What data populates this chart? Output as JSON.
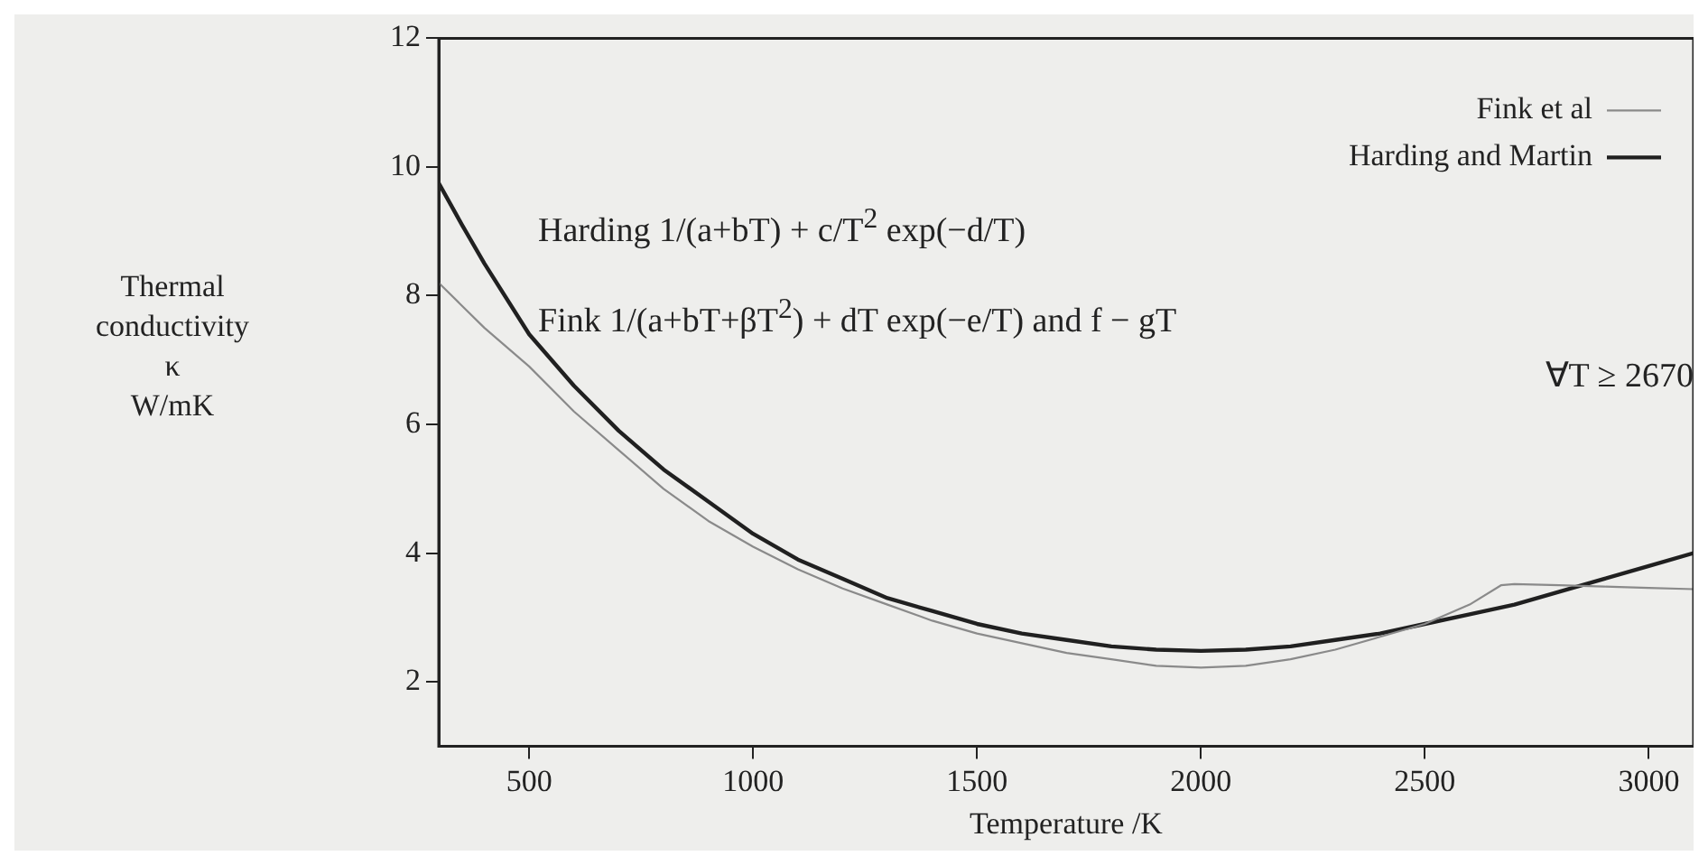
{
  "chart_data": {
    "type": "line",
    "xlabel": "Temperature /K",
    "ylabel": "Thermal\nconductivity\nκ\nW/mK",
    "xlim": [
      298,
      3100
    ],
    "ylim": [
      1,
      12
    ],
    "xticks": [
      500,
      1000,
      1500,
      2000,
      2500,
      3000
    ],
    "yticks": [
      2,
      4,
      6,
      8,
      10,
      12
    ],
    "legend": "top right",
    "marker": "none",
    "line_style": "solid",
    "annotations": [
      "Harding 1/(a+bT) + c/T$^{2}$ exp(−d/T)",
      "Fink 1/(a+bT+βT$^{2}$) + dT exp(−e/T) and f − gT",
      "∀T ≥ 2670"
    ],
    "series": [
      {
        "name": "Fink et al",
        "color": "#8a8a8a",
        "x": [
          298,
          400,
          500,
          600,
          700,
          800,
          900,
          1000,
          1100,
          1200,
          1300,
          1400,
          1500,
          1600,
          1700,
          1800,
          1900,
          2000,
          2100,
          2200,
          2300,
          2400,
          2500,
          2600,
          2670,
          2700,
          2800,
          2900,
          3000,
          3100
        ],
        "values": [
          8.2,
          7.5,
          6.9,
          6.2,
          5.6,
          5.0,
          4.5,
          4.1,
          3.75,
          3.45,
          3.2,
          2.95,
          2.75,
          2.6,
          2.45,
          2.35,
          2.25,
          2.22,
          2.25,
          2.35,
          2.5,
          2.7,
          2.9,
          3.2,
          3.5,
          3.52,
          3.5,
          3.48,
          3.46,
          3.44
        ]
      },
      {
        "name": "Harding and Martin",
        "color": "#202020",
        "x": [
          298,
          350,
          400,
          500,
          600,
          700,
          800,
          900,
          1000,
          1100,
          1200,
          1300,
          1400,
          1500,
          1600,
          1700,
          1800,
          1900,
          2000,
          2100,
          2200,
          2300,
          2400,
          2500,
          2600,
          2700,
          2800,
          2900,
          3000,
          3100
        ],
        "values": [
          9.75,
          9.1,
          8.5,
          7.4,
          6.6,
          5.9,
          5.3,
          4.8,
          4.3,
          3.9,
          3.6,
          3.3,
          3.1,
          2.9,
          2.75,
          2.65,
          2.55,
          2.5,
          2.48,
          2.5,
          2.55,
          2.65,
          2.75,
          2.9,
          3.05,
          3.2,
          3.4,
          3.6,
          3.8,
          4.0
        ]
      }
    ]
  }
}
